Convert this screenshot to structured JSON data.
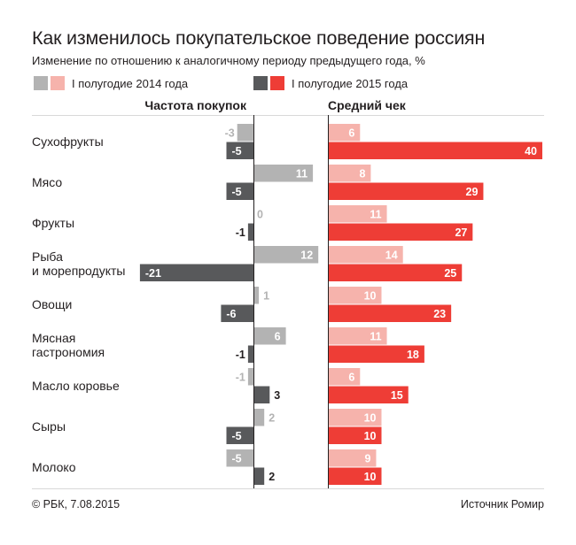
{
  "colors": {
    "freq_2014": "#b3b3b3",
    "freq_2015": "#58595b",
    "check_2014": "#f6b3ac",
    "check_2015": "#ee3d36",
    "axis": "#231f20",
    "divider": "#d9d9d9"
  },
  "chart_data": {
    "type": "bar",
    "title": "Как изменилось покупательское поведение россиян",
    "subtitle": "Изменение по отношению к аналогичному периоду предыдущего года, %",
    "legend": [
      {
        "name": "I полугодие 2014 года",
        "colors": [
          "#b3b3b3",
          "#f6b3ac"
        ]
      },
      {
        "name": "I полугодие 2015 года",
        "colors": [
          "#58595b",
          "#ee3d36"
        ]
      }
    ],
    "panels": [
      {
        "key": "freq",
        "title": "Частота покупок"
      },
      {
        "key": "check",
        "title": "Средний чек"
      }
    ],
    "categories": [
      [
        "Сухофрукты"
      ],
      [
        "Мясо"
      ],
      [
        "Фрукты"
      ],
      [
        "Рыба",
        "и морепродукты"
      ],
      [
        "Овощи"
      ],
      [
        "Мясная",
        "гастрономия"
      ],
      [
        "Масло коровье"
      ],
      [
        "Сыры"
      ],
      [
        "Молоко"
      ]
    ],
    "series": [
      {
        "name": "I полугодие 2014 года",
        "panel": "freq",
        "values": [
          -3,
          11,
          0,
          12,
          1,
          6,
          -1,
          2,
          -5
        ]
      },
      {
        "name": "I полугодие 2015 года",
        "panel": "freq",
        "values": [
          -5,
          -5,
          -1,
          -21,
          -6,
          -1,
          3,
          -5,
          2
        ]
      },
      {
        "name": "I полугодие 2014 года",
        "panel": "check",
        "values": [
          6,
          8,
          11,
          14,
          10,
          11,
          6,
          10,
          9
        ]
      },
      {
        "name": "I полугодие 2015 года",
        "panel": "check",
        "values": [
          40,
          29,
          27,
          25,
          23,
          18,
          15,
          10,
          10
        ]
      }
    ]
  },
  "footer": {
    "copyright": "© РБК, 7.08.2015",
    "source": "Источник Ромир"
  }
}
